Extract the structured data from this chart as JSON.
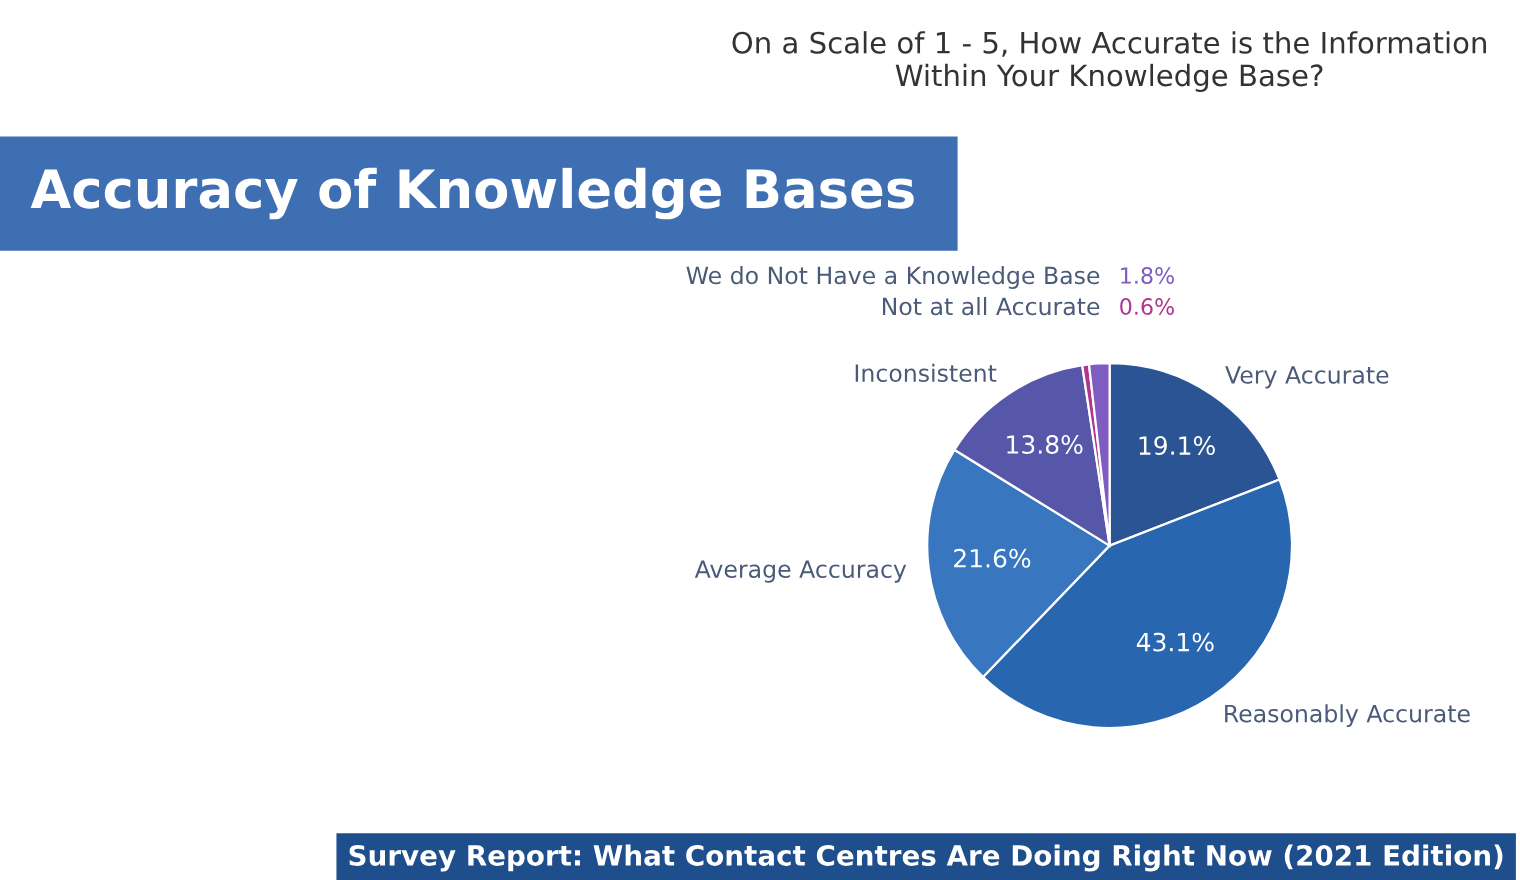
{
  "chart_data": {
    "type": "pie",
    "title": "Accuracy of Knowledge Bases",
    "subtitle": "On a Scale of 1 - 5, How Accurate is the Information Within Your Knowledge Base?",
    "categories": [
      "Very Accurate",
      "Reasonably Accurate",
      "Average Accuracy",
      "Inconsistent",
      "Not at all Accurate",
      "We do Not Have a Knowledge Base"
    ],
    "values": [
      19.1,
      43.1,
      21.6,
      13.8,
      0.6,
      1.8
    ],
    "value_labels": [
      "19.1%",
      "43.1%",
      "21.6%",
      "13.8%",
      "0.6%",
      "1.8%"
    ],
    "colors": [
      "#2a5494",
      "#2866b0",
      "#3876c0",
      "#5657a8",
      "#b0358e",
      "#7e5cc0"
    ],
    "annotations": [
      "Survey Report: What Contact Centres Are Doing Right Now (2021 Edition)"
    ]
  }
}
